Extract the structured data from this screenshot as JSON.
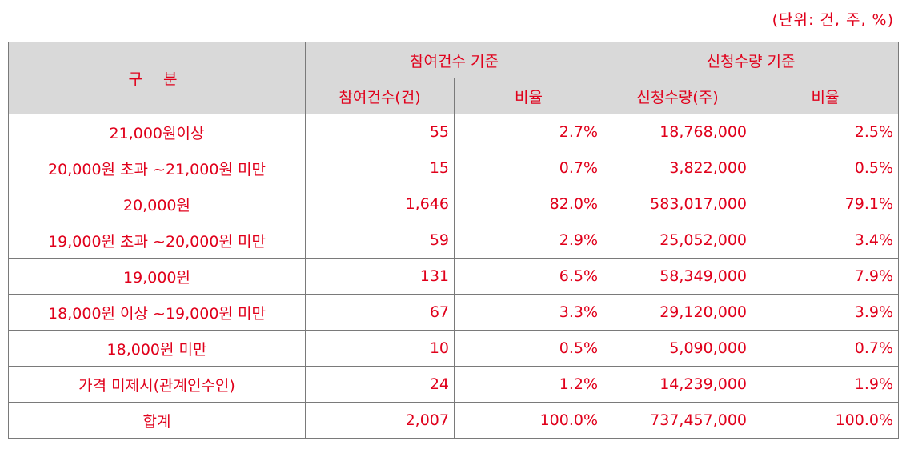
{
  "unit_note": "(단위: 건, 주, %)",
  "header": {
    "category": "구 분",
    "group1": "참여건수 기준",
    "group2": "신청수량 기준",
    "sub1": "참여건수(건)",
    "sub2": "비율",
    "sub3": "신청수량(주)",
    "sub4": "비율"
  },
  "rows": [
    {
      "label": "21,000원이상",
      "count": "55",
      "count_ratio": "2.7%",
      "qty": "18,768,000",
      "qty_ratio": "2.5%"
    },
    {
      "label": "20,000원 초과 ~21,000원 미만",
      "count": "15",
      "count_ratio": "0.7%",
      "qty": "3,822,000",
      "qty_ratio": "0.5%"
    },
    {
      "label": "20,000원",
      "count": "1,646",
      "count_ratio": "82.0%",
      "qty": "583,017,000",
      "qty_ratio": "79.1%"
    },
    {
      "label": "19,000원 초과 ~20,000원 미만",
      "count": "59",
      "count_ratio": "2.9%",
      "qty": "25,052,000",
      "qty_ratio": "3.4%"
    },
    {
      "label": "19,000원",
      "count": "131",
      "count_ratio": "6.5%",
      "qty": "58,349,000",
      "qty_ratio": "7.9%"
    },
    {
      "label": "18,000원 이상 ~19,000원 미만",
      "count": "67",
      "count_ratio": "3.3%",
      "qty": "29,120,000",
      "qty_ratio": "3.9%"
    },
    {
      "label": "18,000원 미만",
      "count": "10",
      "count_ratio": "0.5%",
      "qty": "5,090,000",
      "qty_ratio": "0.7%"
    },
    {
      "label": "가격 미제시(관계인수인)",
      "count": "24",
      "count_ratio": "1.2%",
      "qty": "14,239,000",
      "qty_ratio": "1.9%"
    },
    {
      "label": "합계",
      "count": "2,007",
      "count_ratio": "100.0%",
      "qty": "737,457,000",
      "qty_ratio": "100.0%"
    }
  ]
}
